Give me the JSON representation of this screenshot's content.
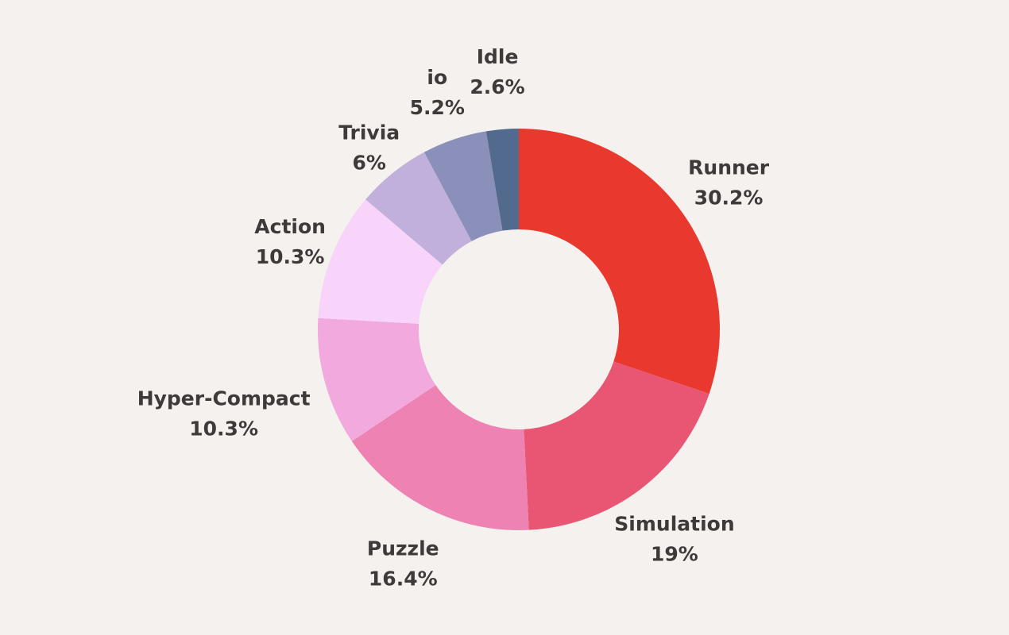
{
  "chart_data": {
    "type": "pie",
    "variant": "donut",
    "start_angle": "12 o'clock, clockwise",
    "slices": [
      {
        "label": "Runner",
        "value_label": "30.2%",
        "value": 30.2,
        "color": "#e9392f"
      },
      {
        "label": "Simulation",
        "value_label": "19%",
        "value": 19,
        "color": "#e95673"
      },
      {
        "label": "Puzzle",
        "value_label": "16.4%",
        "value": 16.4,
        "color": "#ee83b3"
      },
      {
        "label": "Hyper-Compact",
        "value_label": "10.3%",
        "value": 10.3,
        "color": "#f1a9de"
      },
      {
        "label": "Action",
        "value_label": "10.3%",
        "value": 10.3,
        "color": "#f8d3fa"
      },
      {
        "label": "Trivia",
        "value_label": "6%",
        "value": 6,
        "color": "#c0b0db"
      },
      {
        "label": "io",
        "value_label": "5.2%",
        "value": 5.2,
        "color": "#8a90ba"
      },
      {
        "label": "Idle",
        "value_label": "2.6%",
        "value": 2.6,
        "color": "#526a8e"
      }
    ]
  }
}
